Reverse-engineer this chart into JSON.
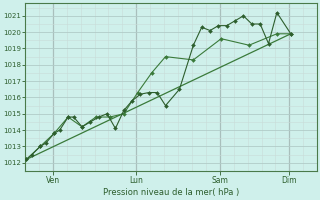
{
  "xlabel": "Pression niveau de la mer( hPa )",
  "bg_color": "#cff0eb",
  "grid_minor_color": "#c8dcd8",
  "grid_major_color": "#b0ccc8",
  "vline_color": "#8a8080",
  "line_color": "#2d5e2d",
  "trend_color": "#3a7a3a",
  "ylim": [
    1011.5,
    1021.8
  ],
  "yticks": [
    1012,
    1013,
    1014,
    1015,
    1016,
    1017,
    1018,
    1019,
    1020,
    1021
  ],
  "xtick_labels": [
    "Ven",
    "Lun",
    "Sam",
    "Dim"
  ],
  "xtick_positions": [
    1,
    4,
    7,
    9.5
  ],
  "xlim": [
    0,
    10.5
  ],
  "series1_x": [
    0.05,
    0.25,
    0.55,
    0.75,
    1.05,
    1.25,
    1.55,
    1.75,
    2.05,
    2.35,
    2.65,
    2.95,
    3.25,
    3.55,
    3.85,
    4.15,
    4.45,
    4.75,
    5.05,
    5.55,
    6.05,
    6.35,
    6.65,
    6.95,
    7.25,
    7.55,
    7.85,
    8.15,
    8.45,
    8.75,
    9.05,
    9.55
  ],
  "series1_y": [
    1012.2,
    1012.5,
    1013.0,
    1013.2,
    1013.8,
    1014.0,
    1014.8,
    1014.8,
    1014.2,
    1014.5,
    1014.8,
    1015.0,
    1014.1,
    1015.2,
    1015.8,
    1016.2,
    1016.3,
    1016.3,
    1015.5,
    1016.5,
    1019.2,
    1020.3,
    1020.1,
    1020.4,
    1020.4,
    1020.7,
    1021.0,
    1020.5,
    1020.5,
    1019.3,
    1021.2,
    1019.9
  ],
  "series2_x": [
    0.05,
    0.55,
    1.05,
    1.55,
    2.05,
    2.55,
    3.05,
    3.55,
    4.05,
    4.55,
    5.05,
    6.05,
    7.05,
    8.05,
    9.05,
    9.55
  ],
  "series2_y": [
    1012.2,
    1013.0,
    1013.8,
    1014.8,
    1014.2,
    1014.8,
    1014.8,
    1015.0,
    1016.3,
    1017.5,
    1018.5,
    1018.3,
    1019.6,
    1019.2,
    1019.9,
    1019.9
  ],
  "trend_x": [
    0.05,
    9.55
  ],
  "trend_y": [
    1012.2,
    1019.9
  ],
  "vline_positions": [
    1.0,
    4.0,
    7.0,
    9.5
  ]
}
